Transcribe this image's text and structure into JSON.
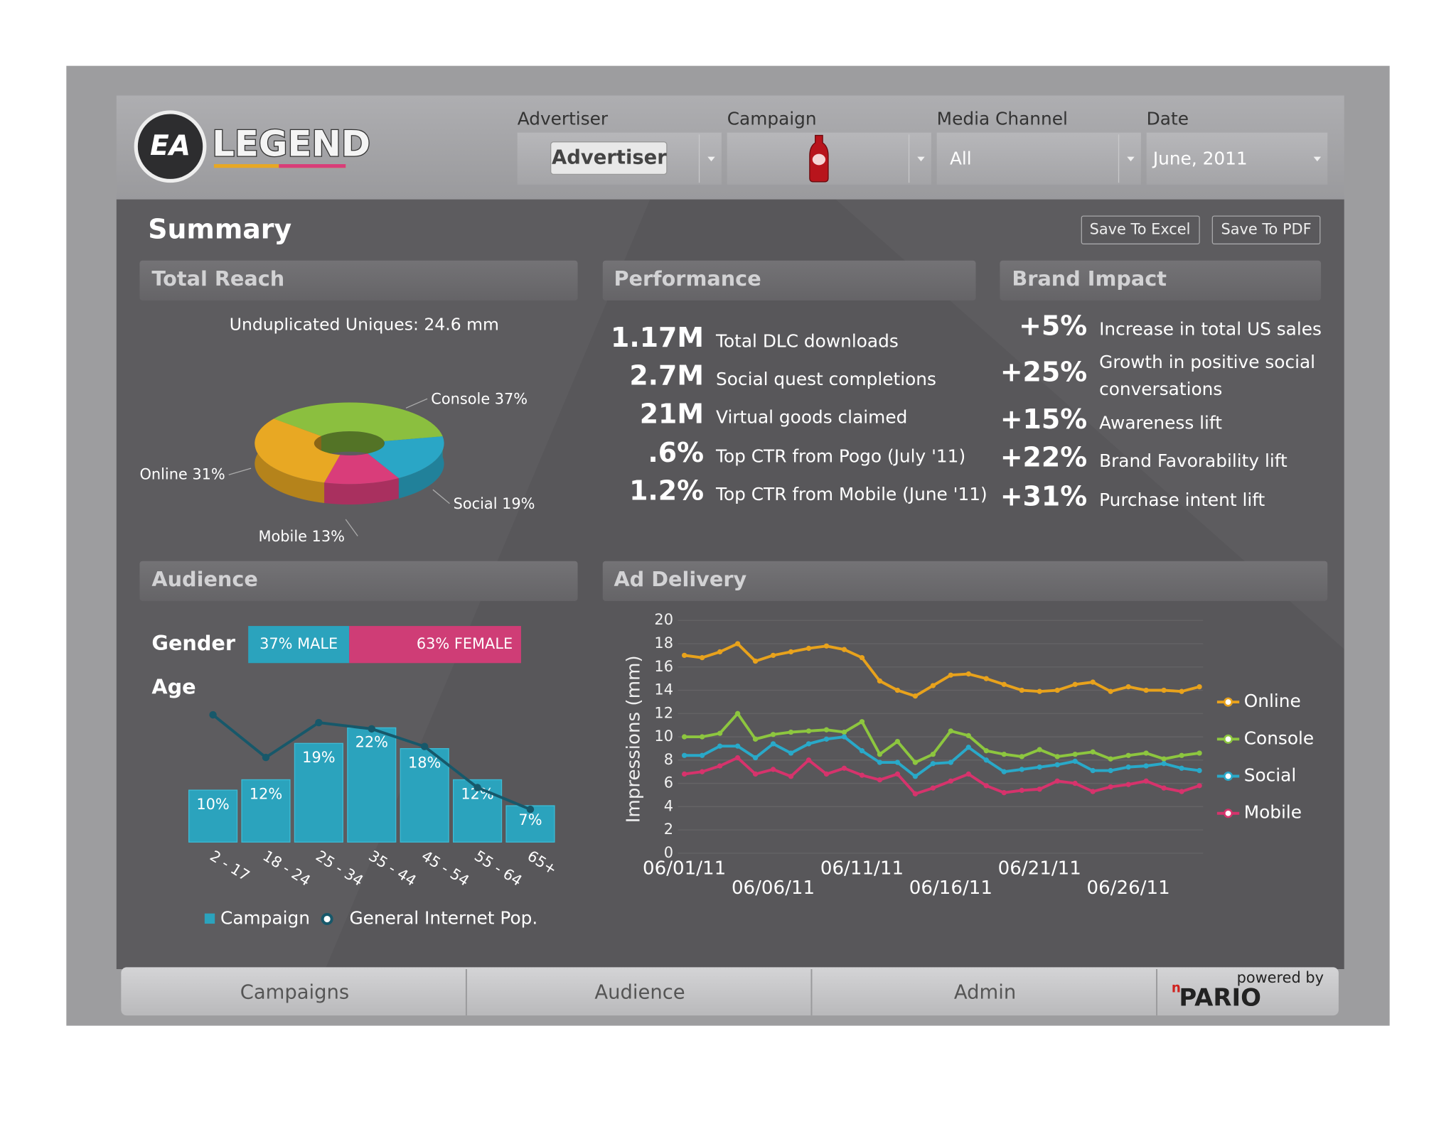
{
  "header": {
    "logo": {
      "badge": "EA",
      "name": "LEGEND"
    },
    "filters": [
      {
        "label": "Advertiser",
        "value": "Advertiser"
      },
      {
        "label": "Campaign"
      },
      {
        "label": "Media Channel",
        "value": "All"
      },
      {
        "label": "Date",
        "value": "June, 2011"
      }
    ]
  },
  "summary": {
    "title": "Summary",
    "buttons": [
      "Save To Excel",
      "Save To PDF"
    ]
  },
  "sections": {
    "total_reach": "Total Reach",
    "performance": "Performance",
    "brand_impact": "Brand Impact",
    "audience": "Audience"
  },
  "performance": {
    "items": [
      {
        "value": "1.17M",
        "label": "Total DLC downloads"
      },
      {
        "value": "2.7M",
        "label": "Social quest completions"
      },
      {
        "value": "21M",
        "label": "Virtual goods claimed"
      },
      {
        "value": ".6%",
        "label": "Top CTR from Pogo (July '11)"
      },
      {
        "value": "1.2%",
        "label": "Top CTR from Mobile (June '11)"
      }
    ]
  },
  "brand_impact": {
    "items": [
      {
        "value": "+5%",
        "label": [
          "Increase in total US sales"
        ]
      },
      {
        "value": "+25%",
        "label": [
          "Growth in positive social",
          "conversations"
        ]
      },
      {
        "value": "+15%",
        "label": [
          "Awareness lift"
        ]
      },
      {
        "value": "+22%",
        "label": [
          "Brand Favorability lift"
        ]
      },
      {
        "value": "+31%",
        "label": [
          "Purchase intent lift"
        ]
      }
    ]
  },
  "audience": {
    "gender": {
      "label": "Gender",
      "values": [
        37,
        63
      ],
      "value_labels": [
        "37% MALE",
        "63% FEMALE"
      ],
      "colors": [
        "#2ba3bd",
        "#cf3d76"
      ]
    }
  },
  "chart_data": [
    {
      "type": "pie",
      "title": "Unduplicated Uniques: 24.6 mm",
      "categories": [
        "Console",
        "Social",
        "Mobile",
        "Online"
      ],
      "values": [
        37,
        19,
        13,
        31
      ],
      "value_labels": [
        "37%",
        "19%",
        "13%",
        "31%"
      ],
      "colors": [
        "#8bbf3f",
        "#2aa6c6",
        "#d93d7a",
        "#e8a823"
      ]
    },
    {
      "type": "bar",
      "title": "Age",
      "categories": [
        "2 - 17",
        "18 - 24",
        "25 - 34",
        "35 - 44",
        "45 - 54",
        "55 - 64",
        "65+"
      ],
      "series": [
        {
          "name": "Campaign",
          "type": "bar",
          "color": "#2ba3bd",
          "values": [
            10,
            12,
            19,
            22,
            18,
            12,
            7
          ],
          "value_labels": [
            "10%",
            "12%",
            "19%",
            "22%",
            "18%",
            "12%",
            "7%"
          ]
        },
        {
          "name": "General Internet Pop.",
          "type": "line",
          "color": "#17586a",
          "values": [
            24.5,
            16.3,
            23,
            21.8,
            18.4,
            10.5,
            6.3
          ]
        }
      ],
      "ylim": [
        0,
        25
      ]
    },
    {
      "type": "line",
      "title": "Ad Delivery",
      "y_label": "Impressions (mm)",
      "categories": [
        "06/01/11",
        null,
        null,
        null,
        null,
        "06/06/11",
        null,
        null,
        null,
        null,
        "06/11/11",
        null,
        null,
        null,
        null,
        "06/16/11",
        null,
        null,
        null,
        null,
        "06/21/11",
        null,
        null,
        null,
        null,
        "06/26/11",
        null,
        null,
        null,
        null
      ],
      "series": [
        {
          "name": "Online",
          "color": "#e8a21c",
          "values": [
            17,
            16.8,
            17.3,
            18,
            16.5,
            17,
            17.3,
            17.6,
            17.8,
            17.5,
            16.8,
            14.8,
            14,
            13.5,
            14.4,
            15.3,
            15.4,
            15,
            14.5,
            14,
            13.9,
            14,
            14.5,
            14.7,
            13.9,
            14.3,
            14,
            14,
            13.9,
            14.3
          ]
        },
        {
          "name": "Console",
          "color": "#8dc63f",
          "values": [
            10,
            10,
            10.3,
            12,
            9.8,
            10.2,
            10.4,
            10.5,
            10.6,
            10.4,
            11.3,
            8.5,
            9.6,
            7.8,
            8.5,
            10.5,
            10.1,
            8.8,
            8.5,
            8.3,
            8.9,
            8.3,
            8.5,
            8.7,
            8.1,
            8.4,
            8.6,
            8.1,
            8.4,
            8.6
          ]
        },
        {
          "name": "Social",
          "color": "#29a9c9",
          "values": [
            8.4,
            8.4,
            9.2,
            9.2,
            8.2,
            9.4,
            8.6,
            9.4,
            9.8,
            10,
            8.8,
            7.8,
            7.8,
            6.6,
            7.7,
            7.8,
            9.1,
            8,
            7,
            7.2,
            7.4,
            7.6,
            7.9,
            7.1,
            7.1,
            7.4,
            7.5,
            7.7,
            7.3,
            7.1
          ]
        },
        {
          "name": "Mobile",
          "color": "#d6336c",
          "values": [
            6.8,
            7,
            7.5,
            8.2,
            6.8,
            7.2,
            6.6,
            8,
            6.8,
            7.3,
            6.7,
            6.3,
            6.8,
            5.1,
            5.6,
            6.2,
            6.8,
            5.8,
            5.2,
            5.4,
            5.5,
            6.2,
            6,
            5.3,
            5.7,
            5.9,
            6.2,
            5.6,
            5.3,
            5.8
          ]
        }
      ],
      "ylim": [
        0,
        20
      ],
      "yticks": [
        0,
        2,
        4,
        6,
        8,
        10,
        12,
        14,
        16,
        18,
        20
      ],
      "grid": true,
      "legend": "right"
    }
  ],
  "footer": {
    "tabs": [
      "Campaigns",
      "Audience",
      "Admin"
    ],
    "powered_by": "powered by",
    "brand_prefix": "n",
    "brand": "PARIO"
  }
}
